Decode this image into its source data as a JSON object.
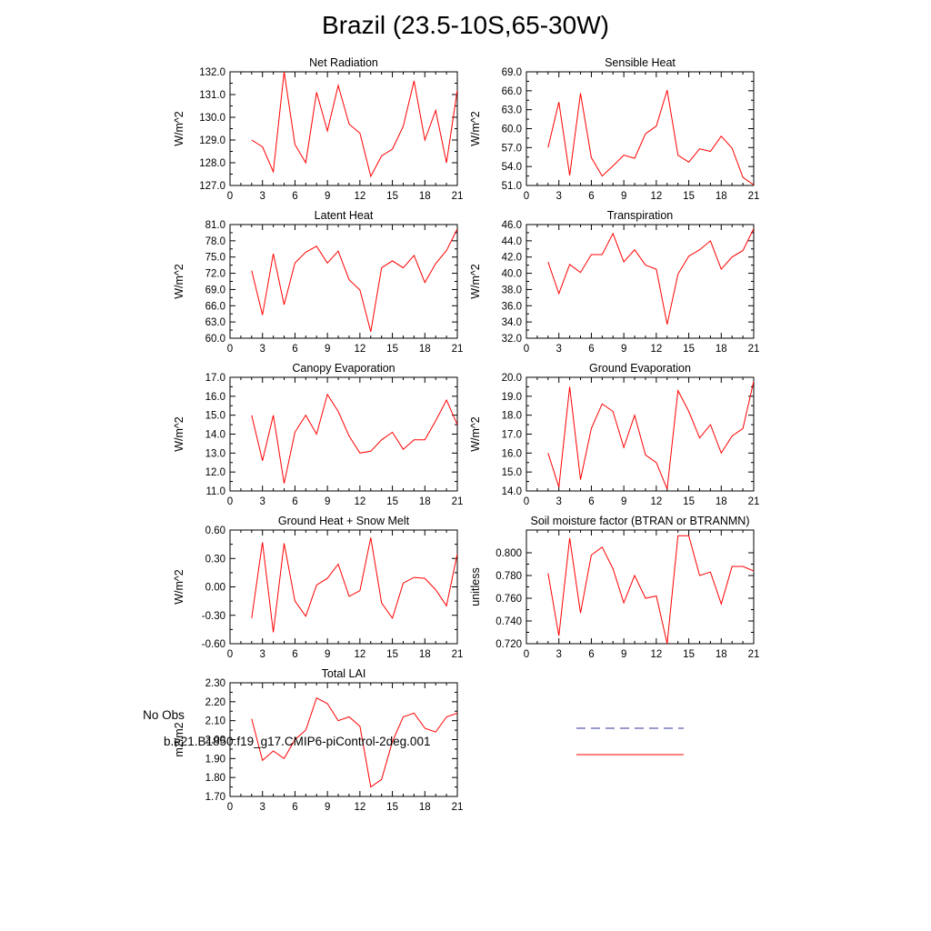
{
  "title": "Brazil (23.5-10S,65-30W)",
  "legend": {
    "obs_label": "No Obs",
    "obs_color": "#333399",
    "case_label": "b.e21.B1850.f19_g17.CMIP6-piControl-2deg.001",
    "case_color": "#ff0000"
  },
  "colors": {
    "line": "#ff0000",
    "axis": "#000000"
  },
  "chart_data": [
    {
      "type": "line",
      "title": "Net Radiation",
      "ylabel": "W/m^2",
      "ylim": [
        127.0,
        132.0
      ],
      "yticks": [
        "127.0",
        "128.0",
        "129.0",
        "130.0",
        "131.0",
        "132.0"
      ],
      "xlim": [
        0,
        21
      ],
      "xticks": [
        "0",
        "3",
        "6",
        "9",
        "12",
        "15",
        "18",
        "21"
      ],
      "x": [
        2,
        3,
        4,
        5,
        6,
        7,
        8,
        9,
        10,
        11,
        12,
        13,
        14,
        15,
        16,
        17,
        18,
        19,
        20,
        21
      ],
      "values": [
        129.0,
        128.7,
        127.6,
        132.0,
        128.8,
        128.0,
        131.1,
        129.4,
        131.4,
        129.7,
        129.3,
        127.4,
        128.3,
        128.6,
        129.6,
        131.6,
        129.0,
        130.3,
        128.0,
        131.2
      ]
    },
    {
      "type": "line",
      "title": "Sensible Heat",
      "ylabel": "W/m^2",
      "ylim": [
        51.0,
        69.0
      ],
      "yticks": [
        "51.0",
        "54.0",
        "57.0",
        "60.0",
        "63.0",
        "66.0",
        "69.0"
      ],
      "xlim": [
        0,
        21
      ],
      "xticks": [
        "0",
        "3",
        "6",
        "9",
        "12",
        "15",
        "18",
        "21"
      ],
      "x": [
        2,
        3,
        4,
        5,
        6,
        7,
        8,
        9,
        10,
        11,
        12,
        13,
        14,
        15,
        16,
        17,
        18,
        19,
        20,
        21
      ],
      "values": [
        57.0,
        64.2,
        52.6,
        65.6,
        55.4,
        52.5,
        54.1,
        55.8,
        55.3,
        59.2,
        60.4,
        66.1,
        55.8,
        54.7,
        56.8,
        56.4,
        58.8,
        56.9,
        52.3,
        51.1
      ]
    },
    {
      "type": "line",
      "title": "Latent Heat",
      "ylabel": "W/m^2",
      "ylim": [
        60.0,
        81.0
      ],
      "yticks": [
        "60.0",
        "63.0",
        "66.0",
        "69.0",
        "72.0",
        "75.0",
        "78.0",
        "81.0"
      ],
      "xlim": [
        0,
        21
      ],
      "xticks": [
        "0",
        "3",
        "6",
        "9",
        "12",
        "15",
        "18",
        "21"
      ],
      "x": [
        2,
        3,
        4,
        5,
        6,
        7,
        8,
        9,
        10,
        11,
        12,
        13,
        14,
        15,
        16,
        17,
        18,
        19,
        20,
        21
      ],
      "values": [
        72.5,
        64.3,
        75.6,
        66.2,
        73.9,
        75.9,
        77.0,
        73.9,
        76.1,
        70.8,
        68.9,
        61.2,
        73.0,
        74.3,
        73.0,
        75.3,
        70.3,
        73.8,
        76.2,
        80.2
      ]
    },
    {
      "type": "line",
      "title": "Transpiration",
      "ylabel": "W/m^2",
      "ylim": [
        32.0,
        46.0
      ],
      "yticks": [
        "32.0",
        "34.0",
        "36.0",
        "38.0",
        "40.0",
        "42.0",
        "44.0",
        "46.0"
      ],
      "xlim": [
        0,
        21
      ],
      "xticks": [
        "0",
        "3",
        "6",
        "9",
        "12",
        "15",
        "18",
        "21"
      ],
      "x": [
        2,
        3,
        4,
        5,
        6,
        7,
        8,
        9,
        10,
        11,
        12,
        13,
        14,
        15,
        16,
        17,
        18,
        19,
        20,
        21
      ],
      "values": [
        41.4,
        37.5,
        41.1,
        40.1,
        42.3,
        42.3,
        44.9,
        41.4,
        42.9,
        41.0,
        40.5,
        33.7,
        39.9,
        42.1,
        42.9,
        44.0,
        40.5,
        42.0,
        42.8,
        45.5
      ]
    },
    {
      "type": "line",
      "title": "Canopy Evaporation",
      "ylabel": "W/m^2",
      "ylim": [
        11.0,
        17.0
      ],
      "yticks": [
        "11.0",
        "12.0",
        "13.0",
        "14.0",
        "15.0",
        "16.0",
        "17.0"
      ],
      "xlim": [
        0,
        21
      ],
      "xticks": [
        "0",
        "3",
        "6",
        "9",
        "12",
        "15",
        "18",
        "21"
      ],
      "x": [
        2,
        3,
        4,
        5,
        6,
        7,
        8,
        9,
        10,
        11,
        12,
        13,
        14,
        15,
        16,
        17,
        18,
        19,
        20,
        21
      ],
      "values": [
        15.0,
        12.6,
        15.0,
        11.4,
        14.1,
        15.0,
        14.0,
        16.1,
        15.2,
        13.9,
        13.0,
        13.1,
        13.7,
        14.1,
        13.2,
        13.7,
        13.7,
        14.7,
        15.8,
        14.5
      ]
    },
    {
      "type": "line",
      "title": "Ground Evaporation",
      "ylabel": "W/m^2",
      "ylim": [
        14.0,
        20.0
      ],
      "yticks": [
        "14.0",
        "15.0",
        "16.0",
        "17.0",
        "18.0",
        "19.0",
        "20.0"
      ],
      "xlim": [
        0,
        21
      ],
      "xticks": [
        "0",
        "3",
        "6",
        "9",
        "12",
        "15",
        "18",
        "21"
      ],
      "x": [
        2,
        3,
        4,
        5,
        6,
        7,
        8,
        9,
        10,
        11,
        12,
        13,
        14,
        15,
        16,
        17,
        18,
        19,
        20,
        21
      ],
      "values": [
        16.0,
        14.2,
        19.5,
        14.6,
        17.3,
        18.6,
        18.2,
        16.3,
        18.0,
        15.9,
        15.5,
        14.1,
        19.3,
        18.2,
        16.8,
        17.5,
        16.0,
        16.9,
        17.3,
        19.8
      ]
    },
    {
      "type": "line",
      "title": "Ground Heat + Snow Melt",
      "ylabel": "W/m^2",
      "ylim": [
        -0.6,
        0.6
      ],
      "yticks": [
        "-0.60",
        "-0.30",
        "0.00",
        "0.30",
        "0.60"
      ],
      "xlim": [
        0,
        21
      ],
      "xticks": [
        "0",
        "3",
        "6",
        "9",
        "12",
        "15",
        "18",
        "21"
      ],
      "x": [
        2,
        3,
        4,
        5,
        6,
        7,
        8,
        9,
        10,
        11,
        12,
        13,
        14,
        15,
        16,
        17,
        18,
        19,
        20,
        21
      ],
      "values": [
        -0.33,
        0.47,
        -0.48,
        0.46,
        -0.15,
        -0.31,
        0.02,
        0.09,
        0.24,
        -0.1,
        -0.04,
        0.52,
        -0.17,
        -0.33,
        0.04,
        0.1,
        0.09,
        -0.03,
        -0.2,
        0.35
      ]
    },
    {
      "type": "line",
      "title": "Soil moisture factor (BTRAN or BTRANMN)",
      "ylabel": "unitless",
      "ylim": [
        0.72,
        0.82
      ],
      "yticks": [
        "0.720",
        "0.740",
        "0.760",
        "0.780",
        "0.800"
      ],
      "xlim": [
        0,
        21
      ],
      "xticks": [
        "0",
        "3",
        "6",
        "9",
        "12",
        "15",
        "18",
        "21"
      ],
      "x": [
        2,
        3,
        4,
        5,
        6,
        7,
        8,
        9,
        10,
        11,
        12,
        13,
        14,
        15,
        16,
        17,
        18,
        19,
        20,
        21
      ],
      "values": [
        0.782,
        0.727,
        0.813,
        0.747,
        0.798,
        0.805,
        0.786,
        0.756,
        0.78,
        0.76,
        0.762,
        0.72,
        0.815,
        0.815,
        0.78,
        0.783,
        0.755,
        0.788,
        0.788,
        0.784
      ]
    },
    {
      "type": "line",
      "title": "Total LAI",
      "ylabel": "m2/m2",
      "ylim": [
        1.7,
        2.3
      ],
      "yticks": [
        "1.70",
        "1.80",
        "1.90",
        "2.00",
        "2.10",
        "2.20",
        "2.30"
      ],
      "xlim": [
        0,
        21
      ],
      "xticks": [
        "0",
        "3",
        "6",
        "9",
        "12",
        "15",
        "18",
        "21"
      ],
      "x": [
        2,
        3,
        4,
        5,
        6,
        7,
        8,
        9,
        10,
        11,
        12,
        13,
        14,
        15,
        16,
        17,
        18,
        19,
        20,
        21
      ],
      "values": [
        2.11,
        1.89,
        1.94,
        1.9,
        2.0,
        2.05,
        2.22,
        2.19,
        2.1,
        2.12,
        2.07,
        1.75,
        1.79,
        1.99,
        2.12,
        2.14,
        2.06,
        2.04,
        2.12,
        2.14
      ]
    }
  ]
}
